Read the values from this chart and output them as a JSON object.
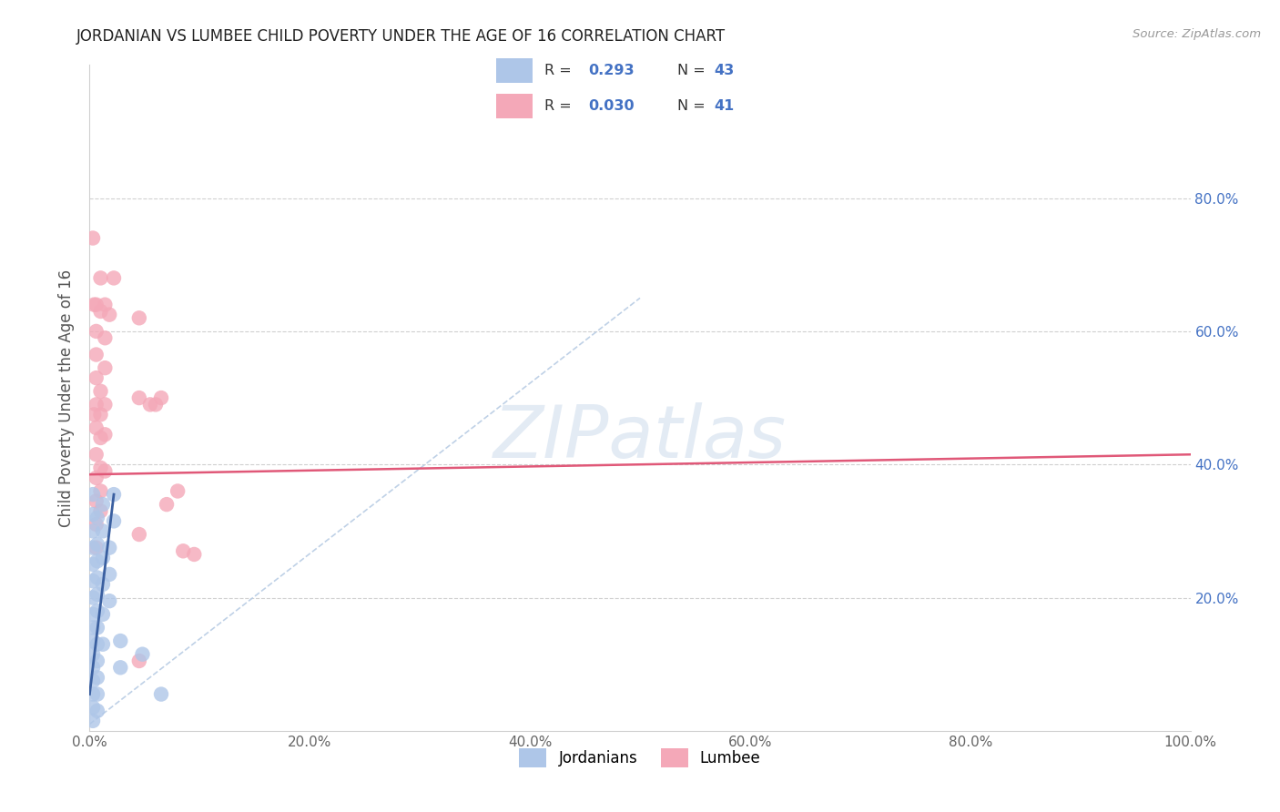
{
  "title": "JORDANIAN VS LUMBEE CHILD POVERTY UNDER THE AGE OF 16 CORRELATION CHART",
  "source": "Source: ZipAtlas.com",
  "ylabel": "Child Poverty Under the Age of 16",
  "xlim": [
    0,
    1.0
  ],
  "ylim": [
    0,
    1.0
  ],
  "xticks": [
    0.0,
    0.2,
    0.4,
    0.6,
    0.8,
    1.0
  ],
  "yticks": [
    0.2,
    0.4,
    0.6,
    0.8
  ],
  "xticklabels": [
    "0.0%",
    "20.0%",
    "40.0%",
    "60.0%",
    "80.0%",
    "100.0%"
  ],
  "yticklabels_right": [
    "20.0%",
    "40.0%",
    "60.0%",
    "80.0%"
  ],
  "legend_r_jordan": "0.293",
  "legend_n_jordan": "43",
  "legend_r_lumbee": "0.030",
  "legend_n_lumbee": "41",
  "watermark": "ZIPatlas",
  "jordan_color": "#aec6e8",
  "lumbee_color": "#f4a8b8",
  "jordan_line_color": "#3a5fa0",
  "lumbee_line_color": "#e05878",
  "jordan_dash_color": "#b8cce4",
  "jordan_scatter": [
    [
      0.003,
      0.355
    ],
    [
      0.003,
      0.325
    ],
    [
      0.003,
      0.3
    ],
    [
      0.003,
      0.275
    ],
    [
      0.003,
      0.25
    ],
    [
      0.003,
      0.225
    ],
    [
      0.003,
      0.2
    ],
    [
      0.003,
      0.175
    ],
    [
      0.003,
      0.155
    ],
    [
      0.003,
      0.135
    ],
    [
      0.003,
      0.115
    ],
    [
      0.003,
      0.095
    ],
    [
      0.003,
      0.075
    ],
    [
      0.003,
      0.055
    ],
    [
      0.003,
      0.035
    ],
    [
      0.003,
      0.015
    ],
    [
      0.007,
      0.32
    ],
    [
      0.007,
      0.28
    ],
    [
      0.007,
      0.255
    ],
    [
      0.007,
      0.23
    ],
    [
      0.007,
      0.205
    ],
    [
      0.007,
      0.18
    ],
    [
      0.007,
      0.155
    ],
    [
      0.007,
      0.13
    ],
    [
      0.007,
      0.105
    ],
    [
      0.007,
      0.08
    ],
    [
      0.007,
      0.055
    ],
    [
      0.007,
      0.03
    ],
    [
      0.012,
      0.34
    ],
    [
      0.012,
      0.3
    ],
    [
      0.012,
      0.26
    ],
    [
      0.012,
      0.22
    ],
    [
      0.012,
      0.175
    ],
    [
      0.012,
      0.13
    ],
    [
      0.018,
      0.275
    ],
    [
      0.018,
      0.235
    ],
    [
      0.018,
      0.195
    ],
    [
      0.022,
      0.355
    ],
    [
      0.022,
      0.315
    ],
    [
      0.028,
      0.135
    ],
    [
      0.028,
      0.095
    ],
    [
      0.048,
      0.115
    ],
    [
      0.065,
      0.055
    ]
  ],
  "lumbee_scatter": [
    [
      0.003,
      0.74
    ],
    [
      0.004,
      0.64
    ],
    [
      0.004,
      0.475
    ],
    [
      0.006,
      0.64
    ],
    [
      0.006,
      0.6
    ],
    [
      0.006,
      0.565
    ],
    [
      0.006,
      0.53
    ],
    [
      0.006,
      0.49
    ],
    [
      0.006,
      0.455
    ],
    [
      0.006,
      0.415
    ],
    [
      0.006,
      0.38
    ],
    [
      0.006,
      0.345
    ],
    [
      0.006,
      0.31
    ],
    [
      0.006,
      0.275
    ],
    [
      0.01,
      0.68
    ],
    [
      0.01,
      0.63
    ],
    [
      0.01,
      0.51
    ],
    [
      0.01,
      0.475
    ],
    [
      0.01,
      0.44
    ],
    [
      0.01,
      0.395
    ],
    [
      0.01,
      0.36
    ],
    [
      0.01,
      0.33
    ],
    [
      0.014,
      0.64
    ],
    [
      0.014,
      0.59
    ],
    [
      0.014,
      0.545
    ],
    [
      0.014,
      0.49
    ],
    [
      0.014,
      0.445
    ],
    [
      0.014,
      0.39
    ],
    [
      0.018,
      0.625
    ],
    [
      0.022,
      0.68
    ],
    [
      0.045,
      0.62
    ],
    [
      0.045,
      0.5
    ],
    [
      0.045,
      0.295
    ],
    [
      0.045,
      0.105
    ],
    [
      0.065,
      0.5
    ],
    [
      0.08,
      0.36
    ],
    [
      0.095,
      0.265
    ],
    [
      0.06,
      0.49
    ],
    [
      0.055,
      0.49
    ],
    [
      0.07,
      0.34
    ],
    [
      0.085,
      0.27
    ]
  ]
}
